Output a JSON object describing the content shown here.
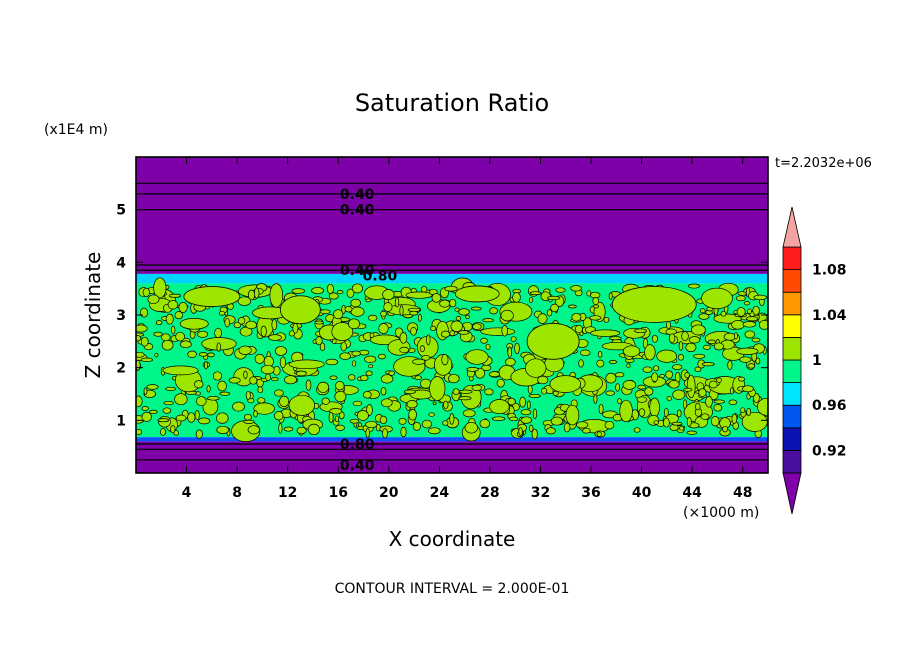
{
  "chart_data": {
    "type": "heatmap",
    "title": "Saturation Ratio",
    "xlabel": "X coordinate",
    "ylabel": "Z coordinate",
    "x_unit": "(×1000 m)",
    "y_unit": "(x1E4 m)",
    "xlim": [
      0,
      50
    ],
    "ylim": [
      0,
      6
    ],
    "x_ticks": [
      4,
      8,
      12,
      16,
      20,
      24,
      28,
      32,
      36,
      40,
      44,
      48
    ],
    "y_ticks": [
      1,
      2,
      3,
      4,
      5
    ],
    "time_label": "t=2.2032e+06",
    "footer": "CONTOUR INTERVAL = 2.000E-01",
    "contour_labels": [
      {
        "text": "0.40",
        "x": 17.5,
        "y": 5.3
      },
      {
        "text": "0.40",
        "x": 17.5,
        "y": 5.0
      },
      {
        "text": "0.40",
        "x": 17.5,
        "y": 3.85
      },
      {
        "text": "0.80",
        "x": 19.3,
        "y": 3.75
      },
      {
        "text": "0.80",
        "x": 17.5,
        "y": 0.55
      },
      {
        "text": "0.40",
        "x": 17.5,
        "y": 0.15
      }
    ],
    "contour_lines_z": [
      5.5,
      5.3,
      5.0,
      3.95,
      3.85,
      0.55,
      0.45,
      0.25
    ],
    "regions": [
      {
        "z_range": [
          0,
          0.6
        ],
        "level": "<0.9",
        "color": "#7d00a8"
      },
      {
        "z_range": [
          0.6,
          0.68
        ],
        "level": "0.94-0.96",
        "color": "#0055ff"
      },
      {
        "z_range": [
          0.68,
          3.6
        ],
        "level": "0.96-1.02 (mixed)",
        "colors": [
          "#00f58a",
          "#9ee600"
        ]
      },
      {
        "z_range": [
          3.6,
          3.78
        ],
        "level": "0.94-0.98",
        "color": "#00d5ff"
      },
      {
        "z_range": [
          3.78,
          6.0
        ],
        "level": "<0.9",
        "color": "#7d00a8"
      }
    ],
    "colorbar": {
      "levels": [
        0.9,
        0.92,
        0.94,
        0.96,
        0.98,
        1.0,
        1.02,
        1.04,
        1.06,
        1.08,
        1.1
      ],
      "labels": [
        "0.92",
        "0.96",
        "1",
        "1.04",
        "1.08"
      ],
      "colors": [
        "#4b0f9e",
        "#0b12b0",
        "#0058f0",
        "#00e4ff",
        "#00f58a",
        "#9ee600",
        "#ffff00",
        "#ff9800",
        "#ff4a00",
        "#ff1e1e"
      ],
      "under_color": "#7d00a8",
      "over_color": "#f4a3a3"
    }
  }
}
